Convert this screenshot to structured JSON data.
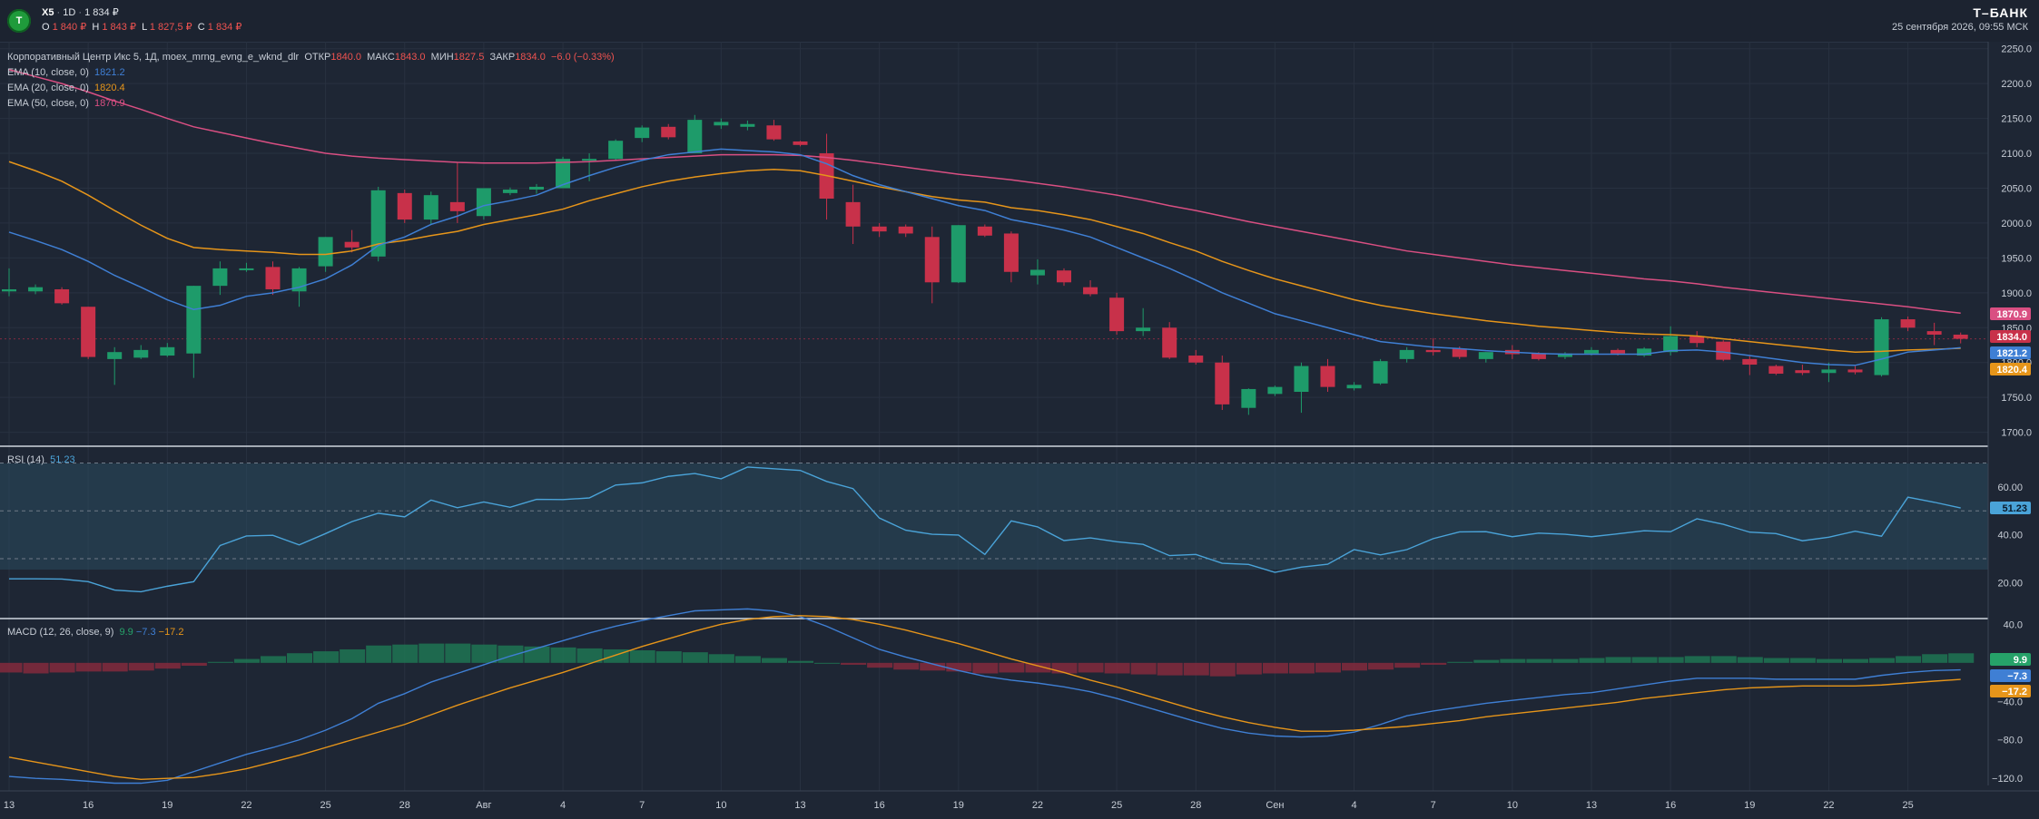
{
  "header": {
    "logo_text": "Т",
    "symbol": "X5",
    "separator": "·",
    "interval": "1D",
    "last_price": "1 834 ₽",
    "ohlc": [
      {
        "label": "O",
        "value": "1 840 ₽"
      },
      {
        "label": "H",
        "value": "1 843 ₽"
      },
      {
        "label": "L",
        "value": "1 827,5 ₽"
      },
      {
        "label": "C",
        "value": "1 834 ₽"
      }
    ],
    "brand": "Т–БАНК",
    "datetime": "25 сентября 2026, 09:55 МСК"
  },
  "price_pane": {
    "title": "Корпоративный Центр Икс 5, 1Д, moex_mrng_evng_e_wknd_dlr",
    "ohlc_labels": [
      {
        "label": "ОТКР",
        "value": "1840.0"
      },
      {
        "label": "МАКС",
        "value": "1843.0"
      },
      {
        "label": "МИН",
        "value": "1827.5"
      },
      {
        "label": "ЗАКР",
        "value": "1834.0"
      }
    ],
    "change": "−6.0 (−0.33%)",
    "ema": [
      {
        "label": "EMA (10, close, 0)",
        "value": "1821.2",
        "color": "#3f7fd4"
      },
      {
        "label": "EMA (20, close, 0)",
        "value": "1820.4",
        "color": "#e6951a"
      },
      {
        "label": "EMA (50, close, 0)",
        "value": "1870.9",
        "color": "#d94f82"
      }
    ],
    "badges": [
      {
        "text": "1870.9",
        "color": "#d94f82",
        "y": 1870.9
      },
      {
        "text": "1834.0",
        "color": "#c8314a",
        "y": 1834.0
      },
      {
        "text": "1821.2",
        "color": "#3f7fd4",
        "y": 1821.2
      },
      {
        "text": "1820.4",
        "color": "#e6951a",
        "y": 1820.4
      }
    ],
    "y_ticks": [
      "2250.0",
      "2200.0",
      "2150.0",
      "2100.0",
      "2050.0",
      "2000.0",
      "1950.0",
      "1900.0",
      "1850.0",
      "1800.0",
      "1750.0",
      "1700.0"
    ]
  },
  "rsi_pane": {
    "label": "RSI (14)",
    "value": "51.23",
    "color": "#4aa3d8",
    "y_ticks": [
      "60.00",
      "40.00",
      "20.00"
    ]
  },
  "macd_pane": {
    "label": "MACD (12, 26, close, 9)",
    "values": [
      {
        "text": "9.9",
        "color": "#26a269"
      },
      {
        "text": "−7.3",
        "color": "#3f7fd4"
      },
      {
        "text": "−17.2",
        "color": "#e6951a"
      }
    ],
    "y_ticks": [
      "40.0",
      "−40.0",
      "−80.0",
      "−120.0"
    ]
  },
  "x_axis": {
    "labels": [
      "13",
      "16",
      "19",
      "22",
      "25",
      "28",
      "Авг",
      "4",
      "7",
      "10",
      "13",
      "16",
      "19",
      "22",
      "25",
      "28",
      "Сен",
      "4",
      "7",
      "10",
      "13",
      "16",
      "19",
      "22",
      "25"
    ]
  },
  "colors": {
    "background": "#1e2634",
    "up": "#1e9b6a",
    "down": "#c8314a",
    "ema10": "#3f7fd4",
    "ema20": "#e6951a",
    "ema50": "#d94f82",
    "rsi": "#4aa3d8"
  },
  "chart_data": [
    {
      "type": "candlestick",
      "title": "Корпоративный Центр Икс 5, 1Д, moex_mrng_evng_e_wknd_dlr",
      "ylim": [
        1680,
        2260
      ],
      "candles": [
        {
          "o": 1902,
          "h": 1935,
          "l": 1895,
          "c": 1905
        },
        {
          "o": 1902,
          "h": 1912,
          "l": 1898,
          "c": 1908
        },
        {
          "o": 1905,
          "h": 1908,
          "l": 1883,
          "c": 1885
        },
        {
          "o": 1880,
          "h": 1880,
          "l": 1805,
          "c": 1808
        },
        {
          "o": 1805,
          "h": 1822,
          "l": 1768,
          "c": 1815
        },
        {
          "o": 1807,
          "h": 1825,
          "l": 1805,
          "c": 1818
        },
        {
          "o": 1810,
          "h": 1828,
          "l": 1808,
          "c": 1822
        },
        {
          "o": 1813,
          "h": 1910,
          "l": 1778,
          "c": 1910
        },
        {
          "o": 1910,
          "h": 1945,
          "l": 1897,
          "c": 1935
        },
        {
          "o": 1935,
          "h": 1943,
          "l": 1930,
          "c": 1935
        },
        {
          "o": 1937,
          "h": 1945,
          "l": 1897,
          "c": 1905
        },
        {
          "o": 1902,
          "h": 1937,
          "l": 1880,
          "c": 1935
        },
        {
          "o": 1938,
          "h": 1980,
          "l": 1930,
          "c": 1980
        },
        {
          "o": 1973,
          "h": 1990,
          "l": 1958,
          "c": 1965
        },
        {
          "o": 1952,
          "h": 2052,
          "l": 1945,
          "c": 2047
        },
        {
          "o": 2043,
          "h": 2048,
          "l": 2000,
          "c": 2005
        },
        {
          "o": 2005,
          "h": 2045,
          "l": 1998,
          "c": 2040
        },
        {
          "o": 2030,
          "h": 2087,
          "l": 2000,
          "c": 2017
        },
        {
          "o": 2010,
          "h": 2050,
          "l": 2005,
          "c": 2050
        },
        {
          "o": 2043,
          "h": 2051,
          "l": 2040,
          "c": 2048
        },
        {
          "o": 2048,
          "h": 2056,
          "l": 2042,
          "c": 2052
        },
        {
          "o": 2050,
          "h": 2095,
          "l": 2050,
          "c": 2092
        },
        {
          "o": 2092,
          "h": 2100,
          "l": 2060,
          "c": 2092
        },
        {
          "o": 2092,
          "h": 2120,
          "l": 2090,
          "c": 2118
        },
        {
          "o": 2122,
          "h": 2140,
          "l": 2116,
          "c": 2137
        },
        {
          "o": 2138,
          "h": 2142,
          "l": 2120,
          "c": 2123
        },
        {
          "o": 2100,
          "h": 2155,
          "l": 2100,
          "c": 2148
        },
        {
          "o": 2140,
          "h": 2150,
          "l": 2135,
          "c": 2145
        },
        {
          "o": 2138,
          "h": 2147,
          "l": 2133,
          "c": 2142
        },
        {
          "o": 2140,
          "h": 2148,
          "l": 2118,
          "c": 2120
        },
        {
          "o": 2117,
          "h": 2118,
          "l": 2110,
          "c": 2112
        },
        {
          "o": 2100,
          "h": 2128,
          "l": 2005,
          "c": 2035
        },
        {
          "o": 2030,
          "h": 2055,
          "l": 1970,
          "c": 1995
        },
        {
          "o": 1995,
          "h": 2000,
          "l": 1980,
          "c": 1988
        },
        {
          "o": 1995,
          "h": 1998,
          "l": 1980,
          "c": 1985
        },
        {
          "o": 1980,
          "h": 1995,
          "l": 1885,
          "c": 1915
        },
        {
          "o": 1915,
          "h": 1997,
          "l": 1914,
          "c": 1997
        },
        {
          "o": 1995,
          "h": 1998,
          "l": 1980,
          "c": 1982
        },
        {
          "o": 1985,
          "h": 1988,
          "l": 1915,
          "c": 1930
        },
        {
          "o": 1925,
          "h": 1948,
          "l": 1912,
          "c": 1933
        },
        {
          "o": 1932,
          "h": 1935,
          "l": 1910,
          "c": 1915
        },
        {
          "o": 1908,
          "h": 1918,
          "l": 1895,
          "c": 1898
        },
        {
          "o": 1893,
          "h": 1900,
          "l": 1840,
          "c": 1845
        },
        {
          "o": 1845,
          "h": 1878,
          "l": 1838,
          "c": 1850
        },
        {
          "o": 1850,
          "h": 1858,
          "l": 1805,
          "c": 1807
        },
        {
          "o": 1810,
          "h": 1818,
          "l": 1797,
          "c": 1800
        },
        {
          "o": 1800,
          "h": 1810,
          "l": 1732,
          "c": 1740
        },
        {
          "o": 1735,
          "h": 1763,
          "l": 1725,
          "c": 1762
        },
        {
          "o": 1755,
          "h": 1767,
          "l": 1752,
          "c": 1765
        },
        {
          "o": 1758,
          "h": 1800,
          "l": 1728,
          "c": 1795
        },
        {
          "o": 1795,
          "h": 1805,
          "l": 1758,
          "c": 1765
        },
        {
          "o": 1763,
          "h": 1772,
          "l": 1760,
          "c": 1768
        },
        {
          "o": 1770,
          "h": 1805,
          "l": 1768,
          "c": 1802
        },
        {
          "o": 1805,
          "h": 1822,
          "l": 1800,
          "c": 1818
        },
        {
          "o": 1818,
          "h": 1835,
          "l": 1810,
          "c": 1815
        },
        {
          "o": 1820,
          "h": 1823,
          "l": 1805,
          "c": 1808
        },
        {
          "o": 1805,
          "h": 1815,
          "l": 1800,
          "c": 1815
        },
        {
          "o": 1818,
          "h": 1825,
          "l": 1805,
          "c": 1812
        },
        {
          "o": 1813,
          "h": 1815,
          "l": 1803,
          "c": 1805
        },
        {
          "o": 1808,
          "h": 1815,
          "l": 1805,
          "c": 1813
        },
        {
          "o": 1813,
          "h": 1822,
          "l": 1810,
          "c": 1818
        },
        {
          "o": 1818,
          "h": 1820,
          "l": 1810,
          "c": 1813
        },
        {
          "o": 1810,
          "h": 1822,
          "l": 1808,
          "c": 1820
        },
        {
          "o": 1815,
          "h": 1852,
          "l": 1810,
          "c": 1838
        },
        {
          "o": 1838,
          "h": 1845,
          "l": 1822,
          "c": 1828
        },
        {
          "o": 1830,
          "h": 1832,
          "l": 1802,
          "c": 1804
        },
        {
          "o": 1805,
          "h": 1810,
          "l": 1782,
          "c": 1797
        },
        {
          "o": 1795,
          "h": 1797,
          "l": 1782,
          "c": 1784
        },
        {
          "o": 1789,
          "h": 1797,
          "l": 1782,
          "c": 1785
        },
        {
          "o": 1785,
          "h": 1800,
          "l": 1772,
          "c": 1790
        },
        {
          "o": 1790,
          "h": 1795,
          "l": 1783,
          "c": 1786
        },
        {
          "o": 1782,
          "h": 1865,
          "l": 1780,
          "c": 1862
        },
        {
          "o": 1862,
          "h": 1866,
          "l": 1845,
          "c": 1850
        },
        {
          "o": 1845,
          "h": 1857,
          "l": 1825,
          "c": 1840
        },
        {
          "o": 1840,
          "h": 1843,
          "l": 1827.5,
          "c": 1834
        }
      ],
      "ema10": [
        1987,
        1975,
        1962,
        1945,
        1925,
        1908,
        1890,
        1876,
        1882,
        1895,
        1900,
        1908,
        1920,
        1940,
        1968,
        1980,
        1998,
        2010,
        2025,
        2032,
        2040,
        2055,
        2068,
        2080,
        2090,
        2098,
        2102,
        2106,
        2104,
        2102,
        2098,
        2085,
        2068,
        2055,
        2045,
        2035,
        2025,
        2018,
        2005,
        1998,
        1990,
        1980,
        1965,
        1950,
        1935,
        1918,
        1900,
        1885,
        1870,
        1860,
        1850,
        1840,
        1830,
        1826,
        1822,
        1820,
        1817,
        1815,
        1813,
        1812,
        1812,
        1812,
        1812,
        1817,
        1818,
        1815,
        1810,
        1805,
        1800,
        1797,
        1796,
        1805,
        1815,
        1818,
        1821.2
      ],
      "ema20": [
        2088,
        2075,
        2060,
        2040,
        2018,
        1997,
        1978,
        1965,
        1962,
        1960,
        1958,
        1955,
        1955,
        1960,
        1970,
        1975,
        1982,
        1988,
        1998,
        2005,
        2012,
        2020,
        2032,
        2042,
        2052,
        2060,
        2066,
        2071,
        2075,
        2077,
        2075,
        2068,
        2060,
        2052,
        2045,
        2038,
        2033,
        2030,
        2022,
        2018,
        2012,
        2005,
        1995,
        1985,
        1972,
        1960,
        1945,
        1932,
        1920,
        1910,
        1900,
        1890,
        1882,
        1876,
        1870,
        1865,
        1860,
        1856,
        1852,
        1849,
        1846,
        1843,
        1841,
        1840,
        1838,
        1834,
        1830,
        1826,
        1822,
        1818,
        1815,
        1816,
        1818,
        1819,
        1820.4
      ],
      "ema50": [
        2220,
        2210,
        2200,
        2188,
        2175,
        2163,
        2150,
        2138,
        2130,
        2122,
        2114,
        2107,
        2100,
        2096,
        2093,
        2091,
        2089,
        2087,
        2086,
        2086,
        2086,
        2087,
        2088,
        2090,
        2092,
        2094,
        2096,
        2098,
        2098,
        2098,
        2097,
        2094,
        2090,
        2085,
        2080,
        2075,
        2070,
        2066,
        2062,
        2057,
        2052,
        2046,
        2040,
        2033,
        2025,
        2018,
        2010,
        2002,
        1995,
        1988,
        1981,
        1974,
        1967,
        1960,
        1955,
        1950,
        1945,
        1940,
        1936,
        1932,
        1928,
        1924,
        1920,
        1917,
        1913,
        1908,
        1904,
        1900,
        1896,
        1892,
        1888,
        1884,
        1880,
        1875,
        1870.9
      ]
    },
    {
      "type": "line",
      "title": "RSI (14)",
      "ylim": [
        5,
        77
      ],
      "overbought": 70,
      "oversold": 30,
      "mid": 50,
      "values": [
        21.6,
        21.6,
        21.5,
        20.4,
        16.9,
        16.2,
        18.5,
        20.4,
        35.5,
        39.5,
        39.8,
        35.8,
        40.5,
        45.5,
        49,
        47.5,
        54.5,
        51.3,
        53.7,
        51.5,
        54.8,
        54.7,
        55.4,
        60.8,
        61.7,
        64.4,
        65.6,
        63.4,
        68.3,
        67.6,
        66.9,
        62.3,
        59.3,
        47,
        41.9,
        40.2,
        39.9,
        31.8,
        45.8,
        43.3,
        37.6,
        38.7,
        37.1,
        36,
        31.3,
        31.8,
        28.1,
        27.6,
        24.3,
        26.5,
        27.7,
        33.8,
        31.6,
        33.8,
        38.4,
        41.2,
        41.3,
        39.2,
        40.7,
        40.2,
        39.2,
        40.4,
        41.7,
        41.3,
        46.7,
        44.4,
        41.1,
        40.5,
        37.5,
        39,
        41.5,
        39.4,
        55.7,
        53.6,
        51.23
      ]
    },
    {
      "type": "bar",
      "title": "MACD (12, 26, close, 9)",
      "ylim": [
        -133,
        46
      ],
      "histogram": [
        -10,
        -11,
        -10,
        -9,
        -9,
        -8,
        -6,
        -3,
        1,
        4,
        7,
        10,
        12,
        14,
        18,
        19,
        20,
        20,
        19,
        18,
        17,
        16,
        15,
        14,
        13,
        12,
        11,
        9,
        7,
        5,
        2,
        0,
        -2,
        -5,
        -7,
        -8,
        -9,
        -11,
        -10,
        -10,
        -11,
        -10,
        -11,
        -12,
        -13,
        -13,
        -14,
        -12,
        -11,
        -11,
        -10,
        -8,
        -7,
        -5,
        -2,
        1,
        3,
        4,
        4,
        4,
        5,
        6,
        6,
        6,
        7,
        7,
        6,
        5,
        5,
        4,
        4,
        5,
        7,
        9,
        9.9
      ],
      "macd": [
        -118,
        -120,
        -121,
        -123,
        -125,
        -125,
        -122,
        -113,
        -104,
        -95,
        -88,
        -80,
        -70,
        -58,
        -42,
        -32,
        -20,
        -11,
        -2,
        7,
        15,
        23,
        31,
        38,
        44,
        49,
        54,
        55,
        56,
        54,
        48,
        38,
        26,
        14,
        6,
        -1,
        -8,
        -14,
        -18,
        -21,
        -25,
        -30,
        -37,
        -45,
        -53,
        -61,
        -68,
        -73,
        -76,
        -77,
        -76,
        -72,
        -64,
        -55,
        -50,
        -46,
        -42,
        -39,
        -36,
        -33,
        -31,
        -27,
        -23,
        -19,
        -16,
        -16,
        -16,
        -17,
        -17,
        -17,
        -17,
        -13,
        -10,
        -8,
        -7.3
      ],
      "signal": [
        -98,
        -103,
        -108,
        -113,
        -118,
        -121,
        -120,
        -119,
        -115,
        -110,
        -103,
        -96,
        -88,
        -80,
        -72,
        -64,
        -54,
        -44,
        -35,
        -26,
        -18,
        -10,
        -1,
        8,
        17,
        25,
        33,
        40,
        45,
        48,
        49,
        48,
        45,
        40,
        34,
        27,
        20,
        12,
        4,
        -3,
        -10,
        -18,
        -25,
        -33,
        -41,
        -49,
        -56,
        -62,
        -67,
        -71,
        -71,
        -70,
        -68,
        -66,
        -63,
        -60,
        -56,
        -53,
        -50,
        -47,
        -44,
        -41,
        -37,
        -34,
        -31,
        -28,
        -26,
        -25,
        -24,
        -24,
        -24,
        -23,
        -21,
        -19,
        -17.2
      ]
    }
  ]
}
